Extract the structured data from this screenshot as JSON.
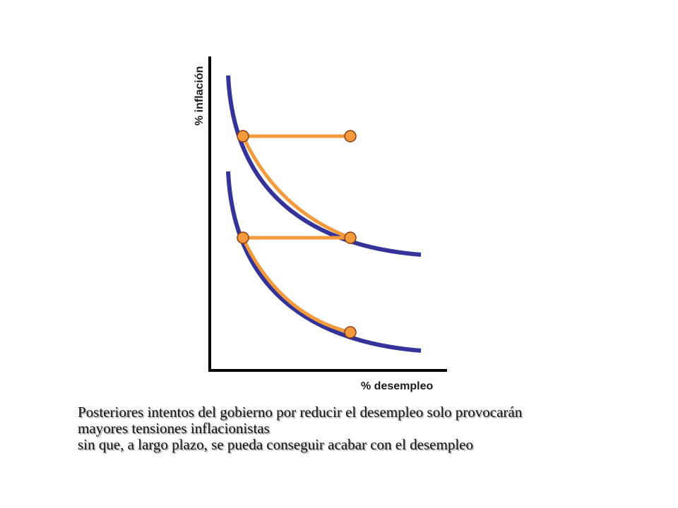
{
  "diagram": {
    "y_axis_label": "% inflación",
    "x_axis_label": "% desempleo",
    "colors": {
      "curve": "#333399",
      "path": "#f39a3c",
      "point_fill": "#f39a3c",
      "point_stroke": "#8a3a10",
      "axis": "#000000"
    },
    "curves": [
      "upper-phillips-curve",
      "lower-phillips-curve"
    ],
    "points": 5
  },
  "caption": {
    "line1": "Posteriores intentos del gobierno por reducir el desempleo solo provocarán",
    "line2": "mayores tensiones inflacionistas",
    "line3": "sin que, a largo plazo,  se pueda conseguir acabar con el desempleo"
  }
}
